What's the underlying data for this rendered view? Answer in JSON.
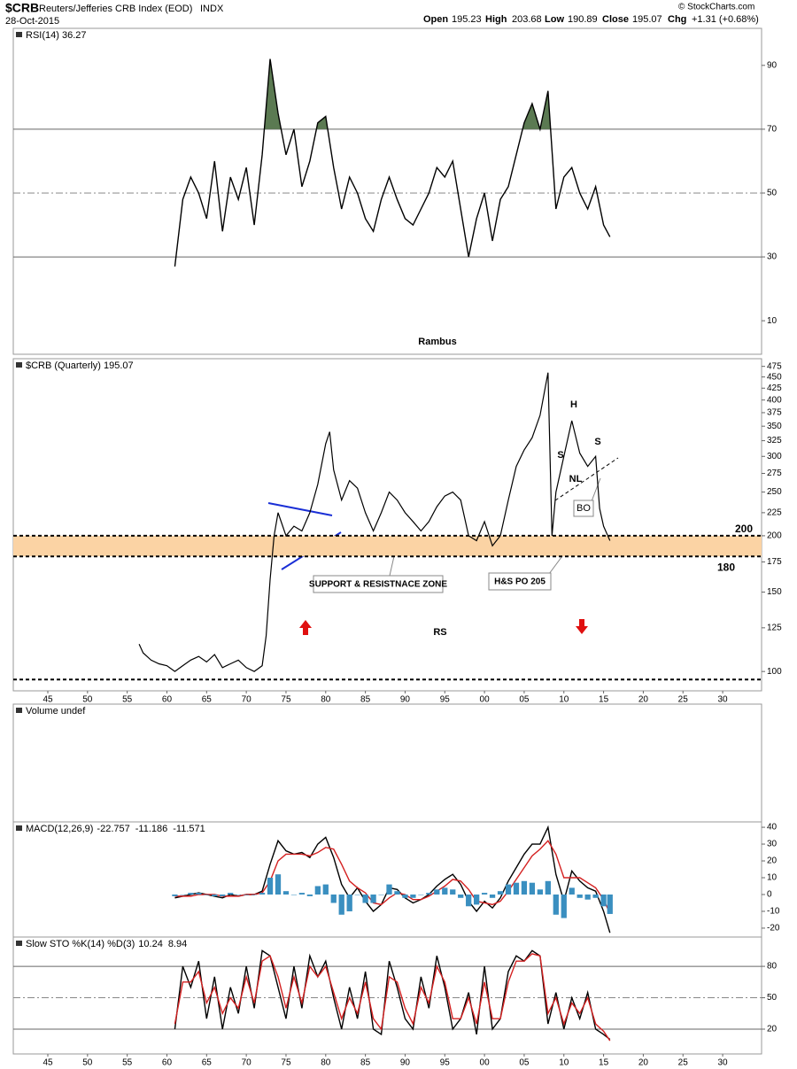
{
  "header": {
    "symbol": "$CRB",
    "name": "Reuters/Jefferies CRB Index (EOD)",
    "exchange": "INDX",
    "date": "28-Oct-2015",
    "open_label": "Open",
    "open": "195.23",
    "high_label": "High",
    "high": "203.68",
    "low_label": "Low",
    "low": "190.89",
    "close_label": "Close",
    "close": "195.07",
    "chg_label": "Chg",
    "chg": "+1.31 (+0.68%)",
    "credit": "© StockCharts.com"
  },
  "chart_data": [
    {
      "type": "line",
      "title": "RSI(14) 36.27",
      "annotations": [
        "Rambus"
      ],
      "xlim": [
        1940.65,
        2034.9
      ],
      "ylim": [
        -0.5,
        101.6
      ],
      "yticks": [
        10,
        30,
        50,
        70,
        90
      ],
      "ref_lines": [
        30,
        70
      ],
      "mid_line": 50,
      "fill_above": 70,
      "fill_color": "#5b7a52",
      "series": [
        {
          "color": "#000000",
          "x": [
            1961,
            1962,
            1963,
            1964,
            1965,
            1966,
            1967,
            1968,
            1969,
            1970,
            1971,
            1972,
            1973,
            1974,
            1975,
            1976,
            1977,
            1978,
            1979,
            1980,
            1981,
            1982,
            1983,
            1984,
            1985,
            1986,
            1987,
            1988,
            1989,
            1990,
            1991,
            1992,
            1993,
            1994,
            1995,
            1996,
            1997,
            1998,
            1999,
            2000,
            2001,
            2002,
            2003,
            2004,
            2005,
            2006,
            2007,
            2008,
            2009,
            2010,
            2011,
            2012,
            2013,
            2014,
            2015,
            2015.8
          ],
          "values": [
            27,
            48,
            55,
            50,
            42,
            60,
            38,
            55,
            48,
            58,
            40,
            62,
            92,
            75,
            62,
            70,
            52,
            60,
            72,
            74,
            58,
            45,
            55,
            50,
            42,
            38,
            48,
            55,
            48,
            42,
            40,
            45,
            50,
            58,
            55,
            60,
            45,
            30,
            42,
            50,
            35,
            48,
            52,
            62,
            72,
            78,
            70,
            82,
            45,
            55,
            58,
            50,
            45,
            52,
            40,
            36.27
          ]
        }
      ]
    },
    {
      "type": "line",
      "title": "$CRB (Quarterly) 195.07",
      "log": true,
      "annotations": [
        "SUPPORT & RESISTNACE ZONE",
        "H&S PO 205",
        "RS",
        "H",
        "S",
        "S",
        "NL",
        "BO"
      ],
      "xlim": [
        1940.65,
        2034.9
      ],
      "ylim": [
        90.6,
        494
      ],
      "yticks": [
        100,
        125,
        150,
        175,
        200,
        225,
        250,
        275,
        300,
        325,
        350,
        375,
        400,
        425,
        450,
        475
      ],
      "xticks": [
        {
          "value": 1945,
          "label": "45"
        },
        {
          "value": 1950,
          "label": "50"
        },
        {
          "value": 1955,
          "label": "55"
        },
        {
          "value": 1960,
          "label": "60"
        },
        {
          "value": 1965,
          "label": "65"
        },
        {
          "value": 1970,
          "label": "70"
        },
        {
          "value": 1975,
          "label": "75"
        },
        {
          "value": 1980,
          "label": "80"
        },
        {
          "value": 1985,
          "label": "85"
        },
        {
          "value": 1990,
          "label": "90"
        },
        {
          "value": 1995,
          "label": "95"
        },
        {
          "value": 2000,
          "label": "00"
        },
        {
          "value": 2005,
          "label": "05"
        },
        {
          "value": 2010,
          "label": "10"
        },
        {
          "value": 2015,
          "label": "15"
        },
        {
          "value": 2020,
          "label": "20"
        },
        {
          "value": 2025,
          "label": "25"
        },
        {
          "value": 2030,
          "label": "30"
        }
      ],
      "levels": [
        {
          "value": 200,
          "label": "200"
        },
        {
          "value": 180,
          "label": "180"
        }
      ],
      "zone_color": "#fbd3a4",
      "baseline": 96,
      "series": [
        {
          "color": "#000000",
          "x": [
            1956.5,
            1957,
            1958,
            1959,
            1960,
            1961,
            1962,
            1963,
            1964,
            1965,
            1966,
            1967,
            1968,
            1969,
            1970,
            1971,
            1972,
            1972.5,
            1973,
            1973.5,
            1974,
            1975,
            1976,
            1977,
            1978,
            1979,
            1980,
            1980.5,
            1981,
            1982,
            1983,
            1984,
            1985,
            1986,
            1987,
            1988,
            1989,
            1990,
            1991,
            1992,
            1993,
            1994,
            1995,
            1996,
            1997,
            1998,
            1999,
            2000,
            2001,
            2002,
            2003,
            2004,
            2005,
            2006,
            2007,
            2008,
            2008.5,
            2009,
            2010,
            2011,
            2012,
            2013,
            2014,
            2014.5,
            2015,
            2015.8
          ],
          "values": [
            115,
            110,
            106,
            104,
            103,
            100,
            103,
            106,
            108,
            105,
            109,
            102,
            104,
            106,
            102,
            100,
            103,
            120,
            160,
            200,
            225,
            200,
            210,
            205,
            225,
            260,
            320,
            340,
            280,
            240,
            265,
            255,
            225,
            205,
            225,
            250,
            240,
            225,
            215,
            205,
            215,
            232,
            245,
            250,
            240,
            200,
            195,
            215,
            190,
            200,
            240,
            285,
            310,
            330,
            370,
            460,
            200,
            250,
            300,
            360,
            305,
            285,
            300,
            230,
            210,
            195.07
          ]
        }
      ]
    },
    {
      "type": "bar",
      "title": "Volume undef",
      "xlim": [
        1940.65,
        2034.9
      ]
    },
    {
      "type": "macd",
      "title": "MACD(12,26,9)",
      "xlim": [
        1940.65,
        2034.9
      ],
      "ylim": [
        -25.3,
        43.2
      ],
      "yticks": [
        -20,
        -10,
        0,
        10,
        20,
        30,
        40
      ],
      "x": [
        1961,
        1962,
        1963,
        1964,
        1965,
        1966,
        1967,
        1968,
        1969,
        1970,
        1971,
        1972,
        1973,
        1974,
        1975,
        1976,
        1977,
        1978,
        1979,
        1980,
        1981,
        1982,
        1983,
        1984,
        1985,
        1986,
        1987,
        1988,
        1989,
        1990,
        1991,
        1992,
        1993,
        1994,
        1995,
        1996,
        1997,
        1998,
        1999,
        2000,
        2001,
        2002,
        2003,
        2004,
        2005,
        2006,
        2007,
        2008,
        2009,
        2010,
        2011,
        2012,
        2013,
        2014,
        2015,
        2015.8
      ],
      "series": [
        {
          "type": "line",
          "color": "#000000",
          "label": "-22.757",
          "values": [
            -2,
            -1,
            0,
            1,
            0,
            -1,
            -2,
            0,
            -1,
            0,
            0,
            2,
            18,
            32,
            26,
            24,
            25,
            22,
            30,
            34,
            22,
            6,
            -2,
            4,
            -4,
            -10,
            -6,
            4,
            3,
            -2,
            -5,
            -3,
            0,
            5,
            9,
            12,
            6,
            -4,
            -10,
            -4,
            -8,
            -2,
            8,
            16,
            24,
            30,
            30,
            40,
            12,
            -4,
            14,
            8,
            4,
            2,
            -10,
            -22.757
          ]
        },
        {
          "type": "line",
          "color": "#d42020",
          "label": "-11.186",
          "values": [
            -1,
            -1,
            -1,
            0,
            0,
            0,
            -1,
            -1,
            -1,
            0,
            0,
            1,
            8,
            20,
            24,
            24,
            24,
            23,
            25,
            28,
            27,
            18,
            8,
            4,
            1,
            -5,
            -6,
            -2,
            1,
            0,
            -3,
            -3,
            -1,
            2,
            5,
            9,
            8,
            3,
            -4,
            -5,
            -6,
            -4,
            2,
            9,
            16,
            23,
            27,
            32,
            24,
            10,
            10,
            10,
            7,
            4,
            -3,
            -11.186
          ]
        },
        {
          "type": "bar",
          "color": "#3a8fc0",
          "label": "-11.571",
          "values": [
            -1,
            0,
            1,
            1,
            0,
            -1,
            -1,
            1,
            0,
            0,
            0,
            1,
            10,
            12,
            2,
            0,
            1,
            -1,
            5,
            6,
            -5,
            -12,
            -10,
            0,
            -5,
            -5,
            0,
            6,
            2,
            -2,
            -2,
            0,
            1,
            3,
            4,
            3,
            -2,
            -7,
            -6,
            1,
            -2,
            2,
            6,
            7,
            8,
            7,
            3,
            8,
            -12,
            -14,
            4,
            -2,
            -3,
            -2,
            -7,
            -11.571
          ]
        }
      ]
    },
    {
      "type": "stochastic",
      "title": "Slow STO %K(14) %D(3)",
      "xlim": [
        1940.65,
        2034.9
      ],
      "ylim": [
        -3.7,
        108
      ],
      "yticks": [
        20,
        50,
        80
      ],
      "ref_lines": [
        20,
        80
      ],
      "mid_line": 50,
      "xticks": [
        {
          "value": 1945,
          "label": "45"
        },
        {
          "value": 1950,
          "label": "50"
        },
        {
          "value": 1955,
          "label": "55"
        },
        {
          "value": 1960,
          "label": "60"
        },
        {
          "value": 1965,
          "label": "65"
        },
        {
          "value": 1970,
          "label": "70"
        },
        {
          "value": 1975,
          "label": "75"
        },
        {
          "value": 1980,
          "label": "80"
        },
        {
          "value": 1985,
          "label": "85"
        },
        {
          "value": 1990,
          "label": "90"
        },
        {
          "value": 1995,
          "label": "95"
        },
        {
          "value": 2000,
          "label": "00"
        },
        {
          "value": 2005,
          "label": "05"
        },
        {
          "value": 2010,
          "label": "10"
        },
        {
          "value": 2015,
          "label": "15"
        },
        {
          "value": 2020,
          "label": "20"
        },
        {
          "value": 2025,
          "label": "25"
        },
        {
          "value": 2030,
          "label": "30"
        }
      ],
      "x": [
        1961,
        1962,
        1963,
        1964,
        1965,
        1966,
        1967,
        1968,
        1969,
        1970,
        1971,
        1972,
        1973,
        1974,
        1975,
        1976,
        1977,
        1978,
        1979,
        1980,
        1981,
        1982,
        1983,
        1984,
        1985,
        1986,
        1987,
        1988,
        1989,
        1990,
        1991,
        1992,
        1993,
        1994,
        1995,
        1996,
        1997,
        1998,
        1999,
        2000,
        2001,
        2002,
        2003,
        2004,
        2005,
        2006,
        2007,
        2008,
        2009,
        2010,
        2011,
        2012,
        2013,
        2014,
        2015,
        2015.8
      ],
      "series": [
        {
          "type": "line",
          "color": "#000000",
          "label": "10.24",
          "values": [
            20,
            80,
            60,
            85,
            30,
            70,
            20,
            60,
            35,
            80,
            40,
            95,
            90,
            60,
            30,
            80,
            40,
            90,
            70,
            85,
            50,
            20,
            60,
            30,
            75,
            20,
            15,
            85,
            60,
            30,
            20,
            70,
            40,
            90,
            60,
            20,
            30,
            55,
            15,
            80,
            20,
            30,
            75,
            90,
            85,
            95,
            90,
            25,
            55,
            20,
            50,
            30,
            55,
            20,
            15,
            10.24
          ]
        },
        {
          "type": "line",
          "color": "#d42020",
          "label": "8.94",
          "values": [
            25,
            65,
            65,
            75,
            45,
            60,
            35,
            50,
            40,
            70,
            45,
            85,
            90,
            70,
            40,
            70,
            45,
            80,
            70,
            80,
            55,
            30,
            50,
            35,
            65,
            30,
            20,
            70,
            65,
            40,
            25,
            60,
            45,
            80,
            65,
            30,
            30,
            50,
            25,
            65,
            30,
            30,
            65,
            85,
            85,
            92,
            90,
            35,
            50,
            25,
            45,
            35,
            50,
            25,
            18,
            8.94
          ]
        }
      ]
    }
  ]
}
